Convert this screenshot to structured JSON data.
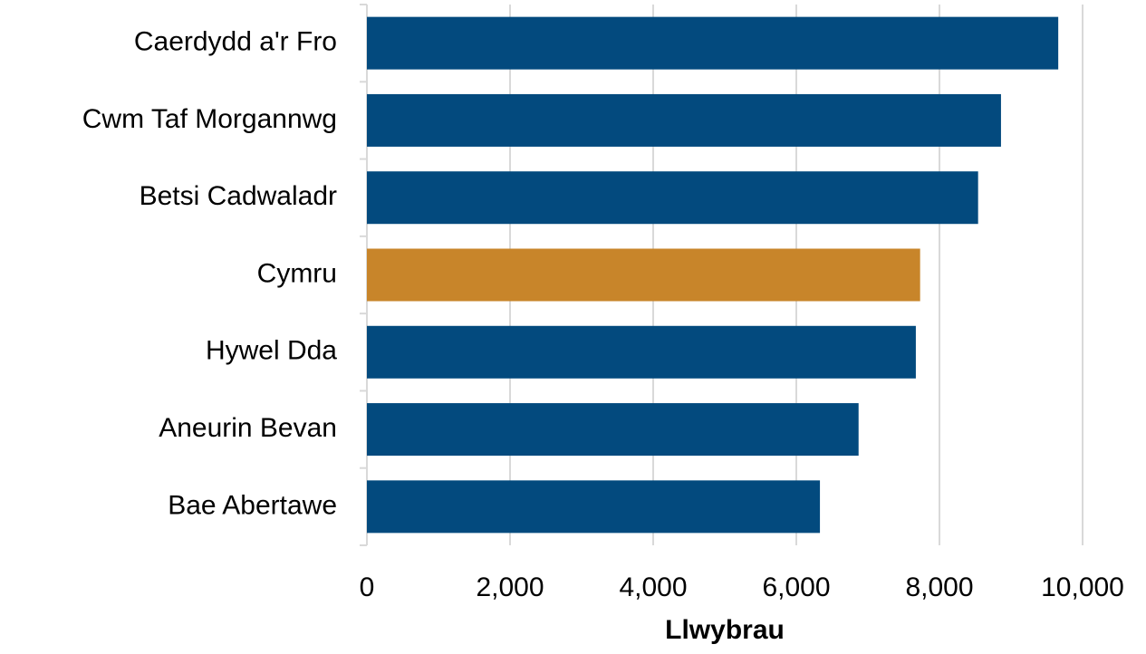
{
  "chart_data": {
    "type": "bar",
    "orientation": "horizontal",
    "categories": [
      "Caerdydd a'r Fro",
      "Cwm Taf Morgannwg",
      "Betsi Cadwaladr",
      "Cymru",
      "Hywel Dda",
      "Aneurin Bevan",
      "Bae Abertawe"
    ],
    "values": [
      9660,
      8860,
      8540,
      7730,
      7670,
      6870,
      6330
    ],
    "colors": [
      "#034a7e",
      "#034a7e",
      "#034a7e",
      "#c8852a",
      "#034a7e",
      "#034a7e",
      "#034a7e"
    ],
    "xlabel": "Llwybrau",
    "xlim": [
      0,
      10000
    ],
    "xticks": [
      0,
      {
        "value": 2000,
        "label": "2,000"
      },
      {
        "value": 4000,
        "label": "4,000"
      },
      {
        "value": 6000,
        "label": "6,000"
      },
      {
        "value": 8000,
        "label": "8,000"
      },
      {
        "value": 10000,
        "label": "10,000"
      }
    ],
    "grid": true
  }
}
